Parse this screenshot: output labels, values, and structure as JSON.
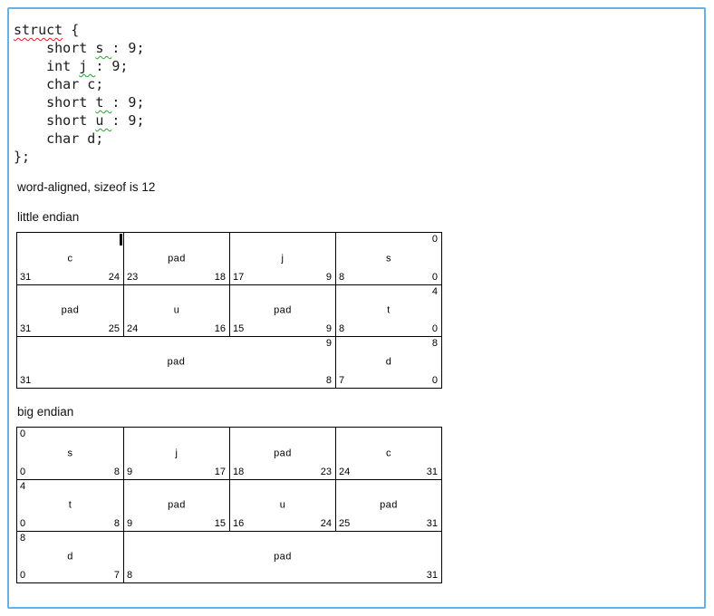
{
  "colors": {
    "page_border": "#64b2ec",
    "squiggle_red": "#e02020",
    "squiggle_green": "#2f9e2f",
    "table_line": "#000000"
  },
  "code": {
    "lines": [
      [
        {
          "t": "struct",
          "sq": "red"
        },
        {
          "t": " {"
        }
      ],
      [
        {
          "t": "    short "
        },
        {
          "t": "s ",
          "sq": "green"
        },
        {
          "t": ": 9;"
        }
      ],
      [
        {
          "t": "    int "
        },
        {
          "t": "j ",
          "sq": "green"
        },
        {
          "t": ": 9;"
        }
      ],
      [
        {
          "t": "    char c;"
        }
      ],
      [
        {
          "t": "    short "
        },
        {
          "t": "t ",
          "sq": "green"
        },
        {
          "t": ": 9;"
        }
      ],
      [
        {
          "t": "    short "
        },
        {
          "t": "u ",
          "sq": "green"
        },
        {
          "t": ": 9;"
        }
      ],
      [
        {
          "t": "    char d;"
        }
      ],
      [
        {
          "t": "};"
        }
      ]
    ]
  },
  "labels": {
    "alignment_note": "word-aligned, sizeof is 12",
    "little_endian": "little endian",
    "big_endian": "big endian"
  },
  "tables": {
    "little_endian": {
      "rows": [
        {
          "cells": [
            {
              "name": "c",
              "span": 1,
              "bit_left": "31",
              "bit_right": "24"
            },
            {
              "name": "pad",
              "span": 1,
              "bit_left": "23",
              "bit_right": "18"
            },
            {
              "name": "j",
              "span": 1,
              "bit_left": "17",
              "bit_right": "9"
            },
            {
              "name": "s",
              "span": 1,
              "bit_left": "8",
              "bit_right": "0",
              "corner_top_right": "0"
            }
          ]
        },
        {
          "cells": [
            {
              "name": "pad",
              "span": 1,
              "bit_left": "31",
              "bit_right": "25"
            },
            {
              "name": "u",
              "span": 1,
              "bit_left": "24",
              "bit_right": "16"
            },
            {
              "name": "pad",
              "span": 1,
              "bit_left": "15",
              "bit_right": "9"
            },
            {
              "name": "t",
              "span": 1,
              "bit_left": "8",
              "bit_right": "0",
              "corner_top_right": "4"
            }
          ]
        },
        {
          "cells": [
            {
              "name": "pad",
              "span": 3,
              "bit_left": "31",
              "bit_right": "8",
              "corner_top_right": "9"
            },
            {
              "name": "d",
              "span": 1,
              "bit_left": "7",
              "bit_right": "0",
              "corner_top_right": "8"
            }
          ]
        }
      ]
    },
    "big_endian": {
      "rows": [
        {
          "cells": [
            {
              "name": "s",
              "span": 1,
              "bit_left": "0",
              "bit_right": "8",
              "corner_top_left": "0"
            },
            {
              "name": "j",
              "span": 1,
              "bit_left": "9",
              "bit_right": "17"
            },
            {
              "name": "pad",
              "span": 1,
              "bit_left": "18",
              "bit_right": "23"
            },
            {
              "name": "c",
              "span": 1,
              "bit_left": "24",
              "bit_right": "31"
            }
          ]
        },
        {
          "cells": [
            {
              "name": "t",
              "span": 1,
              "bit_left": "0",
              "bit_right": "8",
              "corner_top_left": "4"
            },
            {
              "name": "pad",
              "span": 1,
              "bit_left": "9",
              "bit_right": "15"
            },
            {
              "name": "u",
              "span": 1,
              "bit_left": "16",
              "bit_right": "24"
            },
            {
              "name": "pad",
              "span": 1,
              "bit_left": "25",
              "bit_right": "31"
            }
          ]
        },
        {
          "cells": [
            {
              "name": "d",
              "span": 1,
              "bit_left": "0",
              "bit_right": "7",
              "corner_top_left": "8"
            },
            {
              "name": "pad",
              "span": 3,
              "bit_left": "8",
              "bit_right": "31"
            }
          ]
        }
      ]
    }
  }
}
